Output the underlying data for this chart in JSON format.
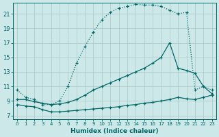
{
  "xlabel": "Humidex (Indice chaleur)",
  "bg_color": "#cde8e8",
  "grid_color": "#b0cccc",
  "line_color": "#006666",
  "xlim": [
    -0.5,
    23.5
  ],
  "ylim": [
    6.5,
    22.5
  ],
  "xticks": [
    0,
    1,
    2,
    3,
    4,
    5,
    6,
    7,
    8,
    9,
    10,
    11,
    12,
    13,
    14,
    15,
    16,
    17,
    18,
    19,
    20,
    21,
    22,
    23
  ],
  "yticks": [
    7,
    9,
    11,
    13,
    15,
    17,
    19,
    21
  ],
  "curve1_x": [
    0,
    1,
    2,
    3,
    4,
    5,
    6,
    7,
    8,
    9,
    10,
    11,
    12,
    13,
    14,
    15,
    16,
    17,
    18,
    19,
    20,
    21,
    22,
    23
  ],
  "curve1_y": [
    10.5,
    9.5,
    9.2,
    8.5,
    8.5,
    9.0,
    11.0,
    14.2,
    16.5,
    18.5,
    20.2,
    21.2,
    21.8,
    22.0,
    22.3,
    22.2,
    22.2,
    22.0,
    21.5,
    21.0,
    21.2,
    10.5,
    11.0,
    10.5
  ],
  "curve2_x": [
    0,
    1,
    2,
    3,
    4,
    5,
    6,
    7,
    8,
    9,
    10,
    11,
    12,
    13,
    14,
    15,
    16,
    17,
    18,
    19,
    20,
    21,
    22,
    23
  ],
  "curve2_y": [
    9.2,
    9.2,
    8.9,
    8.7,
    8.5,
    8.6,
    8.8,
    9.2,
    9.8,
    10.5,
    11.0,
    11.5,
    12.0,
    12.5,
    13.0,
    13.5,
    14.2,
    15.0,
    17.0,
    13.5,
    13.2,
    12.8,
    11.0,
    10.0
  ],
  "curve3_x": [
    0,
    1,
    2,
    3,
    4,
    5,
    6,
    7,
    8,
    9,
    10,
    11,
    12,
    13,
    14,
    15,
    16,
    17,
    18,
    19,
    20,
    21,
    22,
    23
  ],
  "curve3_y": [
    8.5,
    8.3,
    8.2,
    7.8,
    7.5,
    7.5,
    7.6,
    7.7,
    7.8,
    7.9,
    8.0,
    8.1,
    8.2,
    8.4,
    8.5,
    8.7,
    8.8,
    9.0,
    9.2,
    9.5,
    9.3,
    9.2,
    9.5,
    9.8
  ]
}
